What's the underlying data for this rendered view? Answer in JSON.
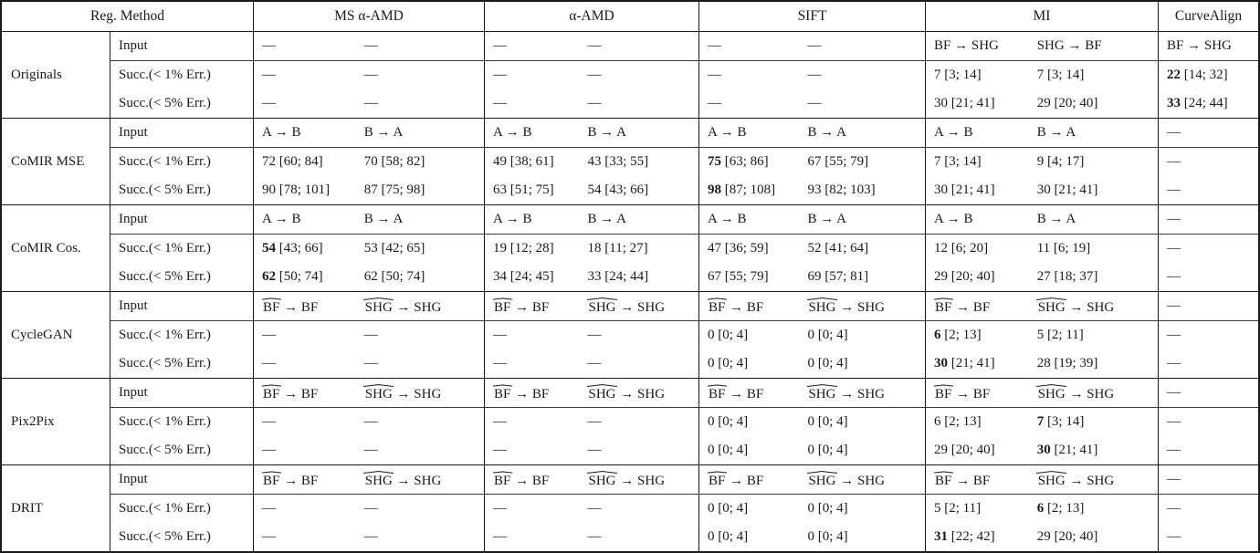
{
  "colors": {
    "text": "#1a1a1a",
    "border": "#1a1a1a",
    "background": "#ffffff"
  },
  "header": {
    "reg_method": "Reg. Method",
    "columns": [
      "MS α-AMD",
      "α-AMD",
      "SIFT",
      "MI",
      "CurveAlign"
    ]
  },
  "groups": [
    {
      "method": "Originals",
      "rows": [
        {
          "label": "Input",
          "cells": [
            [
              "—",
              "—"
            ],
            [
              "—",
              "—"
            ],
            [
              "—",
              "—"
            ],
            [
              "BF → SHG",
              "SHG → BF"
            ],
            [
              "BF → SHG"
            ]
          ]
        },
        {
          "label": "Succ.(< 1% Err.)",
          "cells": [
            [
              "—",
              "—"
            ],
            [
              "—",
              "—"
            ],
            [
              "—",
              "—"
            ],
            [
              "7 [3; 14]",
              "7 [3; 14]"
            ],
            [
              {
                "b": "22",
                "t": " [14; 32]"
              }
            ]
          ]
        },
        {
          "label": "Succ.(< 5% Err.)",
          "cells": [
            [
              "—",
              "—"
            ],
            [
              "—",
              "—"
            ],
            [
              "—",
              "—"
            ],
            [
              "30 [21; 41]",
              "29 [20; 40]"
            ],
            [
              {
                "b": "33",
                "t": " [24; 44]"
              }
            ]
          ]
        }
      ]
    },
    {
      "method": "CoMIR MSE",
      "rows": [
        {
          "label": "Input",
          "cells": [
            [
              "A → B",
              "B → A"
            ],
            [
              "A → B",
              "B → A"
            ],
            [
              "A → B",
              "B → A"
            ],
            [
              "A → B",
              "B → A"
            ],
            [
              "—"
            ]
          ]
        },
        {
          "label": "Succ.(< 1% Err.)",
          "cells": [
            [
              "72 [60; 84]",
              "70 [58; 82]"
            ],
            [
              "49 [38; 61]",
              "43 [33; 55]"
            ],
            [
              {
                "b": "75",
                "t": " [63; 86]"
              },
              "67 [55; 79]"
            ],
            [
              "7 [3; 14]",
              "9 [4; 17]"
            ],
            [
              "—"
            ]
          ]
        },
        {
          "label": "Succ.(< 5% Err.)",
          "cells": [
            [
              "90 [78; 101]",
              "87 [75; 98]"
            ],
            [
              "63 [51; 75]",
              "54 [43; 66]"
            ],
            [
              {
                "b": "98",
                "t": " [87; 108]"
              },
              "93 [82; 103]"
            ],
            [
              "30 [21; 41]",
              "30 [21; 41]"
            ],
            [
              "—"
            ]
          ]
        }
      ]
    },
    {
      "method": "CoMIR Cos.",
      "rows": [
        {
          "label": "Input",
          "cells": [
            [
              "A → B",
              "B → A"
            ],
            [
              "A → B",
              "B → A"
            ],
            [
              "A → B",
              "B → A"
            ],
            [
              "A → B",
              "B → A"
            ],
            [
              "—"
            ]
          ]
        },
        {
          "label": "Succ.(< 1% Err.)",
          "cells": [
            [
              {
                "b": "54",
                "t": " [43; 66]"
              },
              "53 [42; 65]"
            ],
            [
              "19 [12; 28]",
              "18 [11; 27]"
            ],
            [
              "47 [36; 59]",
              "52 [41; 64]"
            ],
            [
              "12 [6; 20]",
              "11 [6; 19]"
            ],
            [
              "—"
            ]
          ]
        },
        {
          "label": "Succ.(< 5% Err.)",
          "cells": [
            [
              {
                "b": "62",
                "t": " [50; 74]"
              },
              "62 [50; 74]"
            ],
            [
              "34 [24; 45]",
              "33 [24; 44]"
            ],
            [
              "67 [55; 79]",
              "69 [57; 81]"
            ],
            [
              "29 [20; 40]",
              "27 [18; 37]"
            ],
            [
              "—"
            ]
          ]
        }
      ]
    },
    {
      "method": "CycleGAN",
      "rows": [
        {
          "label": "Input",
          "cells": [
            [
              {
                "hat": "BF",
                "t": " → BF"
              },
              {
                "hat": "SHG",
                "t": " → SHG"
              }
            ],
            [
              {
                "hat": "BF",
                "t": " → BF"
              },
              {
                "hat": "SHG",
                "t": " → SHG"
              }
            ],
            [
              {
                "hat": "BF",
                "t": " → BF"
              },
              {
                "hat": "SHG",
                "t": " → SHG"
              }
            ],
            [
              {
                "hat": "BF",
                "t": " → BF"
              },
              {
                "hat": "SHG",
                "t": " → SHG"
              }
            ],
            [
              "—"
            ]
          ]
        },
        {
          "label": "Succ.(< 1% Err.)",
          "cells": [
            [
              "—",
              "—"
            ],
            [
              "—",
              "—"
            ],
            [
              "0 [0; 4]",
              "0 [0; 4]"
            ],
            [
              {
                "b": "6",
                "t": " [2; 13]"
              },
              "5 [2; 11]"
            ],
            [
              "—"
            ]
          ]
        },
        {
          "label": "Succ.(< 5% Err.)",
          "cells": [
            [
              "—",
              "—"
            ],
            [
              "—",
              "—"
            ],
            [
              "0 [0; 4]",
              "0 [0; 4]"
            ],
            [
              {
                "b": "30",
                "t": " [21; 41]"
              },
              "28 [19; 39]"
            ],
            [
              "—"
            ]
          ]
        }
      ]
    },
    {
      "method": "Pix2Pix",
      "rows": [
        {
          "label": "Input",
          "cells": [
            [
              {
                "hat": "BF",
                "t": " → BF"
              },
              {
                "hat": "SHG",
                "t": " → SHG"
              }
            ],
            [
              {
                "hat": "BF",
                "t": " → BF"
              },
              {
                "hat": "SHG",
                "t": " → SHG"
              }
            ],
            [
              {
                "hat": "BF",
                "t": " → BF"
              },
              {
                "hat": "SHG",
                "t": " → SHG"
              }
            ],
            [
              {
                "hat": "BF",
                "t": " → BF"
              },
              {
                "hat": "SHG",
                "t": " → SHG"
              }
            ],
            [
              "—"
            ]
          ]
        },
        {
          "label": "Succ.(< 1% Err.)",
          "cells": [
            [
              "—",
              "—"
            ],
            [
              "—",
              "—"
            ],
            [
              "0 [0; 4]",
              "0 [0; 4]"
            ],
            [
              "6 [2; 13]",
              {
                "b": "7",
                "t": " [3; 14]"
              }
            ],
            [
              "—"
            ]
          ]
        },
        {
          "label": "Succ.(< 5% Err.)",
          "cells": [
            [
              "—",
              "—"
            ],
            [
              "—",
              "—"
            ],
            [
              "0 [0; 4]",
              "0 [0; 4]"
            ],
            [
              "29 [20; 40]",
              {
                "b": "30",
                "t": " [21; 41]"
              }
            ],
            [
              "—"
            ]
          ]
        }
      ]
    },
    {
      "method": "DRIT",
      "rows": [
        {
          "label": "Input",
          "cells": [
            [
              {
                "hat": "BF",
                "t": " → BF"
              },
              {
                "hat": "SHG",
                "t": " → SHG"
              }
            ],
            [
              {
                "hat": "BF",
                "t": " → BF"
              },
              {
                "hat": "SHG",
                "t": " → SHG"
              }
            ],
            [
              {
                "hat": "BF",
                "t": " → BF"
              },
              {
                "hat": "SHG",
                "t": " → SHG"
              }
            ],
            [
              {
                "hat": "BF",
                "t": " → BF"
              },
              {
                "hat": "SHG",
                "t": " → SHG"
              }
            ],
            [
              "—"
            ]
          ]
        },
        {
          "label": "Succ.(< 1% Err.)",
          "cells": [
            [
              "—",
              "—"
            ],
            [
              "—",
              "—"
            ],
            [
              "0 [0; 4]",
              "0 [0; 4]"
            ],
            [
              "5 [2; 11]",
              {
                "b": "6",
                "t": " [2; 13]"
              }
            ],
            [
              "—"
            ]
          ]
        },
        {
          "label": "Succ.(< 5% Err.)",
          "cells": [
            [
              "—",
              "—"
            ],
            [
              "—",
              "—"
            ],
            [
              "0 [0; 4]",
              "0 [0; 4]"
            ],
            [
              {
                "b": "31",
                "t": " [22; 42]"
              },
              "29 [20; 40]"
            ],
            [
              "—"
            ]
          ]
        }
      ]
    }
  ]
}
